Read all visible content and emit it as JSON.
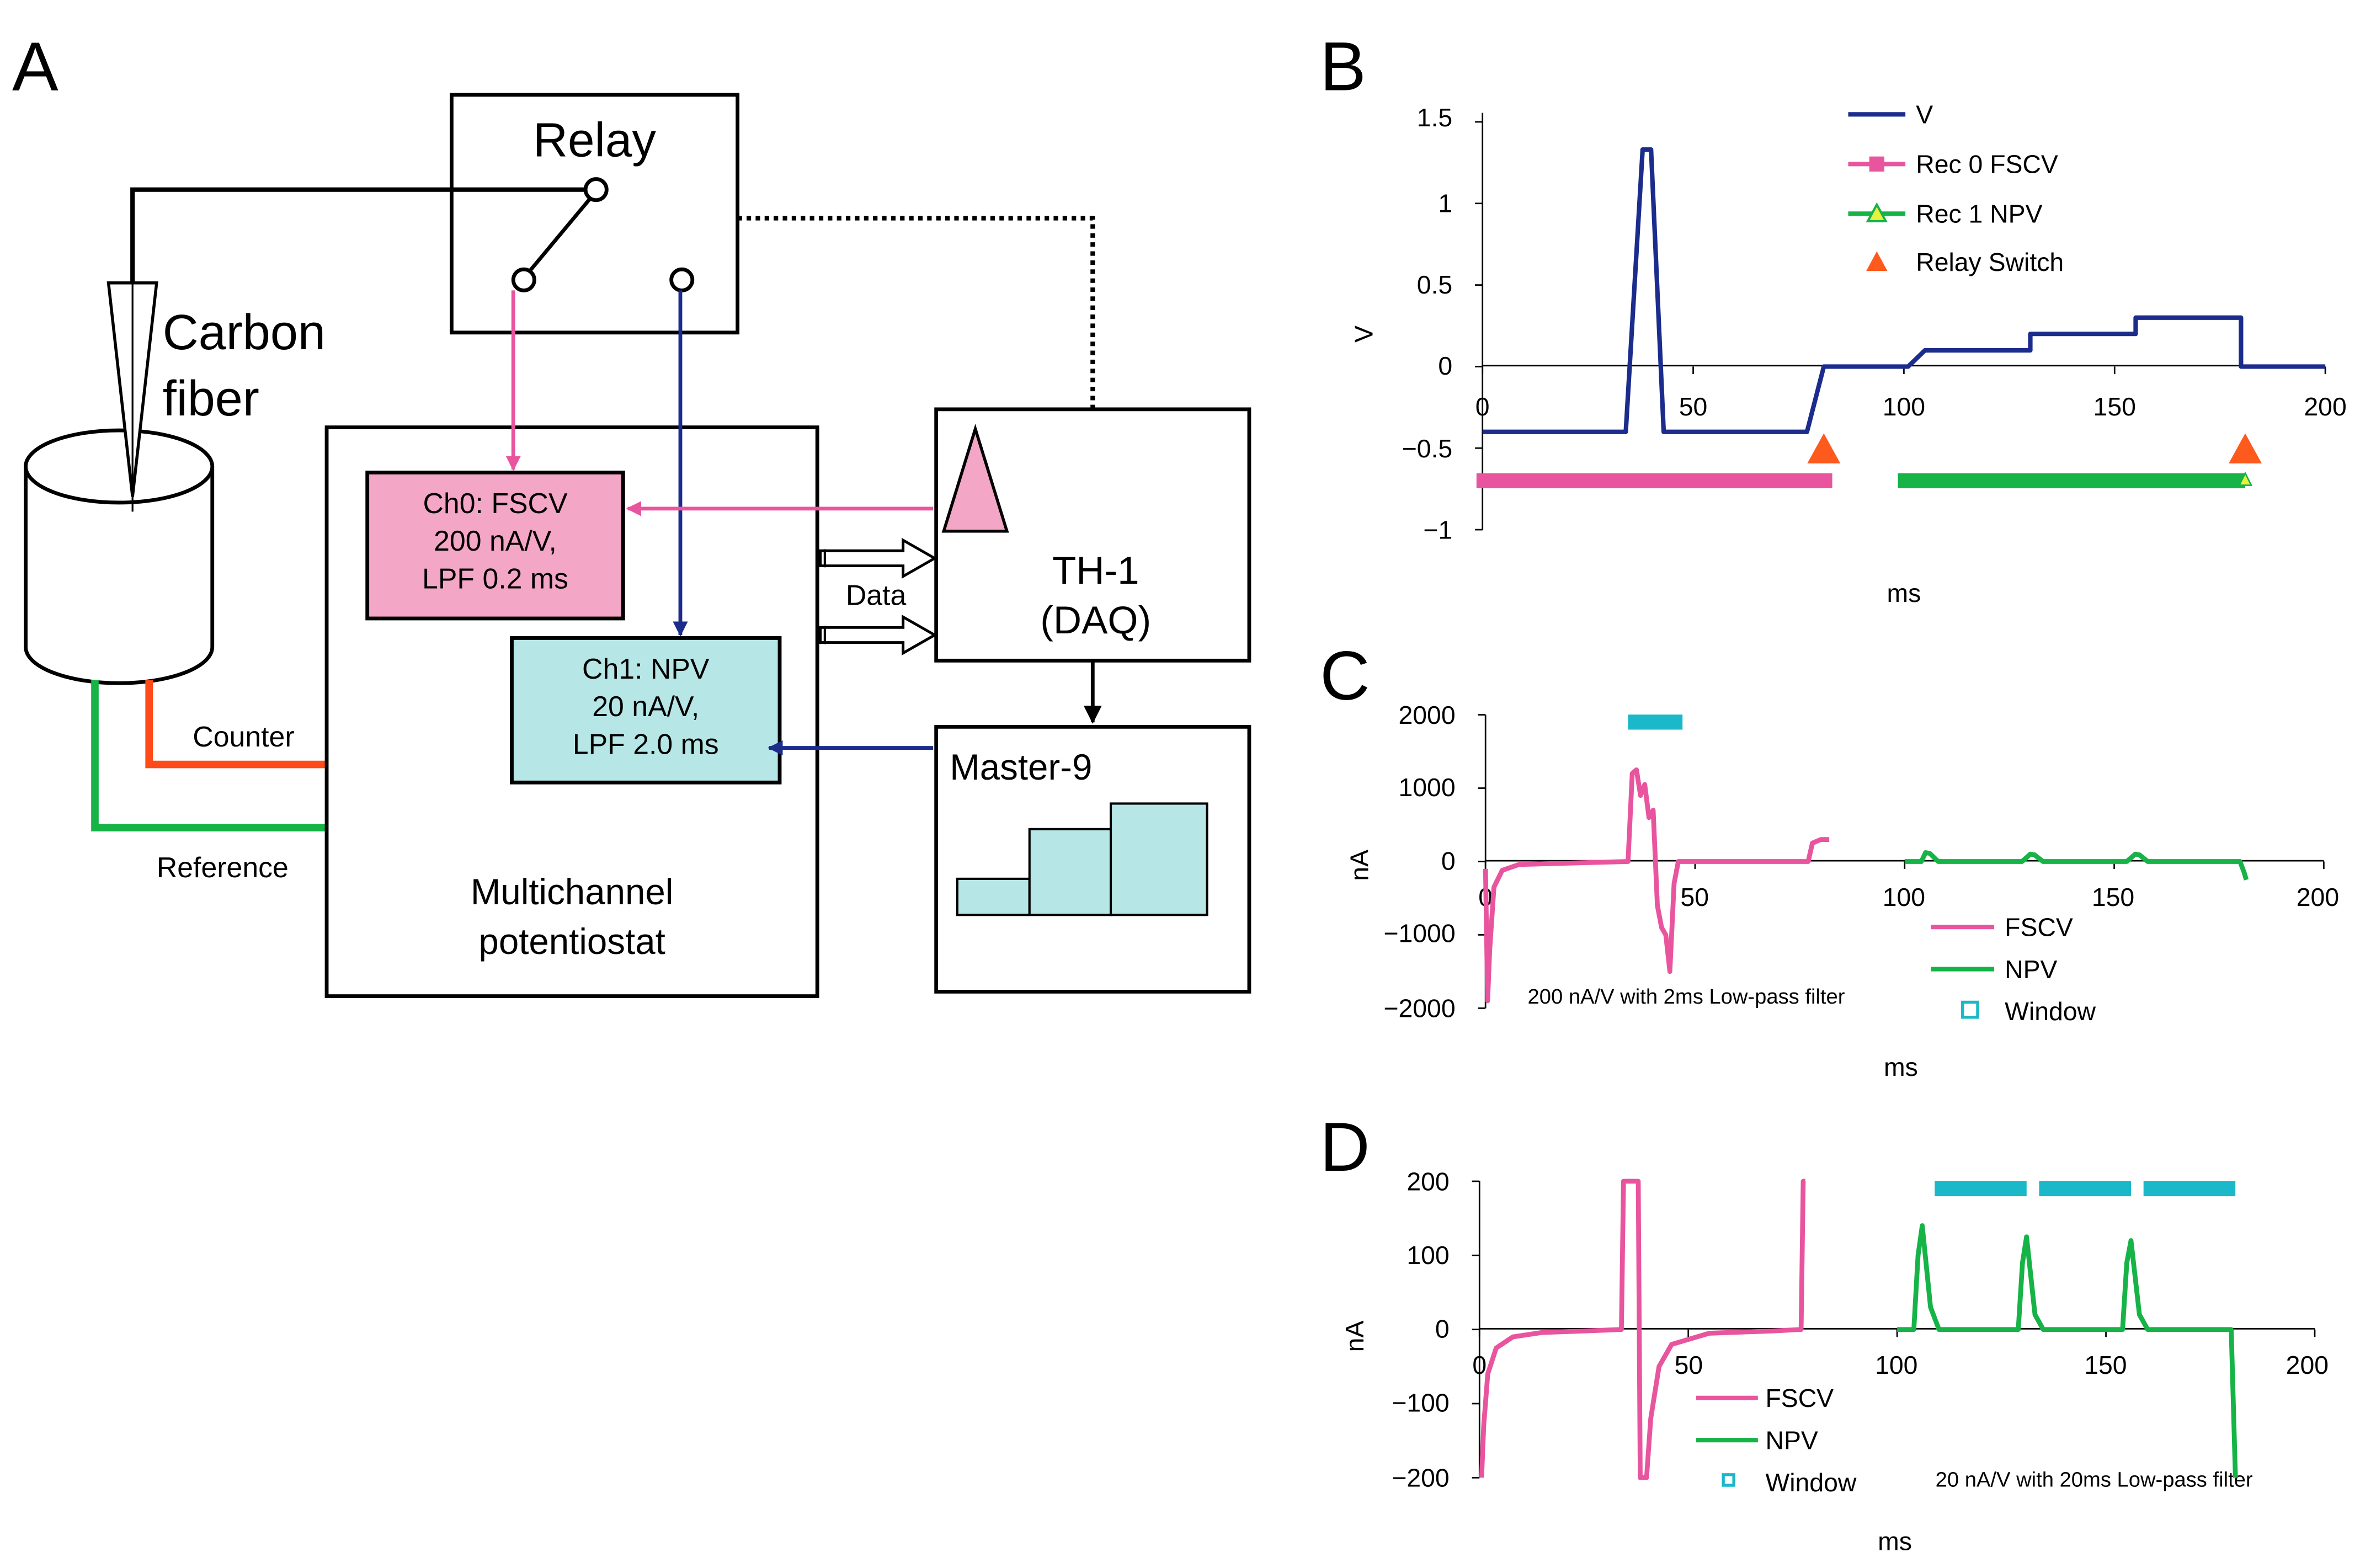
{
  "panels": {
    "A": "A",
    "B": "B",
    "C": "C",
    "D": "D"
  },
  "diagram": {
    "relay": "Relay",
    "electrode_line1": "Carbon",
    "electrode_line2": "fiber",
    "counter": "Counter",
    "reference": "Reference",
    "ch0": [
      "Ch0: FSCV",
      "200 nA/V,",
      "LPF 0.2 ms"
    ],
    "ch1": [
      "Ch1: NPV",
      "20 nA/V,",
      "LPF 2.0 ms"
    ],
    "potentiostat": [
      "Multichannel",
      "potentiostat"
    ],
    "daq": [
      "TH-1",
      "(DAQ)"
    ],
    "data": "Data",
    "master": "Master-9"
  },
  "colors": {
    "pink": "#e8559e",
    "pink_fill": "#f4a6c6",
    "green": "#16b347",
    "navy": "#1b2c8c",
    "cyan": "#1ab8c8",
    "cyan_fill": "#b6e6e6",
    "red": "#ff4a1a",
    "orange": "#ff5a1e"
  },
  "chart_data": [
    {
      "id": "B",
      "type": "line",
      "xlabel": "ms",
      "ylabel": "V",
      "xlim": [
        0,
        200
      ],
      "ylim": [
        -1,
        1.5
      ],
      "xticks": [
        "0",
        "50",
        "100",
        "150",
        "200"
      ],
      "yticks": [
        "1.5",
        "1",
        "0.5",
        "0",
        "−0.5",
        "−1"
      ],
      "legend": [
        "V",
        "Rec 0 FSCV",
        "Rec 1 NPV",
        "Relay Switch"
      ],
      "series": [
        {
          "name": "V",
          "x": [
            0,
            34,
            38,
            40,
            43,
            77,
            80,
            81,
            100,
            101,
            105,
            130,
            130,
            155,
            155,
            180,
            180,
            200
          ],
          "y": [
            -0.4,
            -0.4,
            1.33,
            1.33,
            -0.4,
            -0.4,
            -0.1,
            0,
            0,
            0,
            0.1,
            0.1,
            0.2,
            0.2,
            0.3,
            0.3,
            0,
            0
          ]
        },
        {
          "name": "Rec 0 FSCV",
          "start": 0,
          "end": 83,
          "level": -0.7
        },
        {
          "name": "Rec 1 NPV",
          "start": 100,
          "end": 181,
          "level": -0.7
        },
        {
          "name": "Relay Switch",
          "x": [
            81,
            181
          ],
          "y": [
            -0.52,
            -0.52
          ]
        }
      ]
    },
    {
      "id": "C",
      "type": "line",
      "xlabel": "ms",
      "ylabel": "nA",
      "xlim": [
        0,
        200
      ],
      "ylim": [
        -2000,
        2000
      ],
      "xticks": [
        "0",
        "50",
        "100",
        "150",
        "200"
      ],
      "yticks": [
        "2000",
        "1000",
        "0",
        "−1000",
        "−2000"
      ],
      "legend": [
        "FSCV",
        "NPV",
        "Window"
      ],
      "annotation": "200 nA/V with 2ms Low-pass filter",
      "series": [
        {
          "name": "FSCV",
          "x": [
            0,
            0.5,
            1,
            2,
            4,
            8,
            34,
            35,
            36,
            37,
            38,
            39,
            40,
            41,
            42,
            43,
            44,
            45,
            46,
            77,
            78,
            80,
            82
          ],
          "y": [
            -100,
            -1900,
            -1200,
            -350,
            -120,
            -40,
            0,
            1200,
            1250,
            900,
            1050,
            600,
            700,
            -600,
            -900,
            -1000,
            -1500,
            -300,
            0,
            0,
            250,
            300,
            300
          ]
        },
        {
          "name": "NPV",
          "x": [
            100,
            104,
            105,
            106,
            108,
            128,
            130,
            131,
            133,
            153,
            155,
            156,
            158,
            180,
            181,
            181.5
          ],
          "y": [
            0,
            0,
            120,
            110,
            0,
            0,
            100,
            90,
            0,
            0,
            100,
            90,
            0,
            0,
            -150,
            -250
          ]
        },
        {
          "name": "Window",
          "x_ranges": [
            [
              34,
              47
            ]
          ],
          "y": 1900
        }
      ]
    },
    {
      "id": "D",
      "type": "line",
      "xlabel": "ms",
      "ylabel": "nA",
      "xlim": [
        0,
        200
      ],
      "ylim": [
        -200,
        200
      ],
      "xticks": [
        "0",
        "50",
        "100",
        "150",
        "200"
      ],
      "yticks": [
        "200",
        "100",
        "0",
        "−100",
        "−200"
      ],
      "legend": [
        "FSCV",
        "NPV",
        "Window"
      ],
      "annotation": "20 nA/V with 20ms Low-pass filter",
      "series": [
        {
          "name": "FSCV",
          "x": [
            0.5,
            1,
            2,
            4,
            8,
            15,
            25,
            34,
            34.5,
            35,
            38,
            38.5,
            39,
            40,
            41,
            43,
            46,
            55,
            70,
            77,
            77.5,
            78
          ],
          "y": [
            -200,
            -130,
            -60,
            -25,
            -10,
            -4,
            -2,
            0,
            200,
            200,
            200,
            -200,
            -200,
            -200,
            -120,
            -50,
            -20,
            -5,
            -2,
            0,
            200,
            200
          ]
        },
        {
          "name": "NPV",
          "x": [
            100,
            104,
            105,
            106,
            108,
            110,
            129,
            130,
            131,
            133,
            135,
            154,
            155,
            156,
            158,
            160,
            180,
            180.5,
            181
          ],
          "y": [
            0,
            0,
            100,
            140,
            30,
            0,
            0,
            90,
            125,
            20,
            0,
            0,
            90,
            120,
            20,
            0,
            0,
            -100,
            -200
          ]
        },
        {
          "name": "Window",
          "x_ranges": [
            [
              109,
              131
            ],
            [
              134,
              156
            ],
            [
              159,
              181
            ]
          ],
          "y": 190
        }
      ]
    }
  ]
}
